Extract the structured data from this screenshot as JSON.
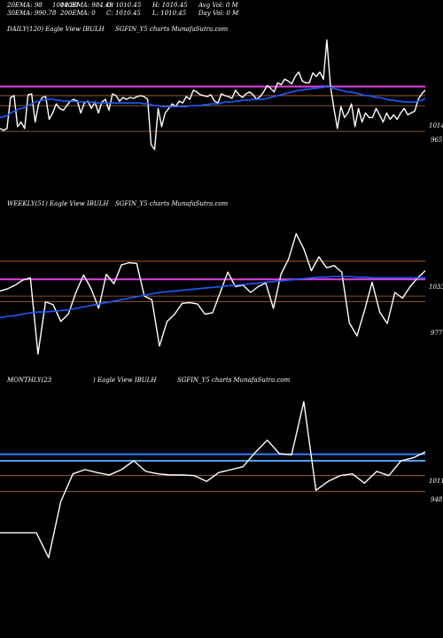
{
  "header": {
    "ema20": "20EMA: 98",
    "ema30": "30EMA: 990.78",
    "ema100": "100EMA: 984.49",
    "ema200": "200EMA: 0",
    "open": "O: 1010.45",
    "high": "H: 1010.45",
    "close": "C: 1010.45",
    "low": "L: 1010.45",
    "avgvol": "Avg Vol: 0  M",
    "dayvol": "Day Vol: 0  M",
    "overlap": "1004.20"
  },
  "panels": [
    {
      "label_left": "DAILY(120) Eagle   View  IBULH",
      "label_right": "SGFIN_Y5 charts MunafaSutra.com",
      "axis_labels": [
        "1014",
        "965"
      ]
    },
    {
      "label_left": "WEEKLY(51) Eagle   View  IBULH",
      "label_right": "SGFIN_Y5 charts MunafaSutra.com",
      "axis_labels": [
        "1033",
        "977"
      ]
    },
    {
      "label_left": "MONTHLY(23",
      "label_mid": ") Eagle   View  IBULH",
      "label_right": "SGFIN_Y5 charts MunafaSutra.com",
      "axis_labels": [
        "1011",
        "948"
      ]
    }
  ],
  "chart_data": [
    {
      "type": "line",
      "title": "DAILY(120)",
      "ylim": [
        900,
        1070
      ],
      "ref_lines": [
        {
          "value": 1014,
          "color": "#e040e0"
        },
        {
          "value": 1004,
          "color": "#b26a2e"
        },
        {
          "value": 993,
          "color": "#b26a2e"
        },
        {
          "value": 965,
          "color": "#b26a2e"
        }
      ],
      "series": [
        {
          "color": "#ffffff",
          "values": [
            968,
            966,
            968,
            1002,
            1004,
            970,
            975,
            968,
            1005,
            1006,
            975,
            995,
            1002,
            1003,
            978,
            985,
            995,
            990,
            988,
            993,
            998,
            1000,
            998,
            985,
            996,
            998,
            990,
            997,
            985,
            997,
            1000,
            988,
            1006,
            1004,
            998,
            1002,
            1000,
            1002,
            1001,
            1003,
            1004,
            1003,
            1000,
            950,
            945,
            990,
            970,
            985,
            990,
            995,
            992,
            998,
            996,
            1003,
            1000,
            1010,
            1008,
            1005,
            1004,
            1003,
            1005,
            998,
            996,
            1006,
            1004,
            1003,
            1001,
            1010,
            1005,
            1002,
            1006,
            1008,
            1005,
            1000,
            1003,
            1008,
            1015,
            1012,
            1008,
            1018,
            1016,
            1022,
            1020,
            1017,
            1025,
            1030,
            1020,
            1018,
            1018,
            1029,
            1025,
            1030,
            1022,
            1065,
            1015,
            990,
            968,
            992,
            980,
            985,
            995,
            970,
            990,
            975,
            985,
            980,
            980,
            990,
            983,
            975,
            985,
            978,
            983,
            978,
            985,
            990,
            983,
            985,
            987,
            1000,
            1006,
            1010
          ]
        },
        {
          "color": "#1e5cff",
          "values": [
            980,
            981,
            982,
            985,
            987,
            989,
            990,
            991,
            993,
            995,
            997,
            998,
            999,
            1000,
            1000,
            1000,
            999,
            999,
            998,
            998,
            998,
            998,
            997,
            997,
            997,
            997,
            997,
            996,
            996,
            996,
            996,
            996,
            996,
            996,
            996,
            996,
            996,
            996,
            996,
            996,
            996,
            995,
            995,
            994,
            993,
            993,
            992,
            992,
            992,
            992,
            992,
            992,
            992,
            992,
            993,
            993,
            993,
            993,
            994,
            994,
            995,
            995,
            995,
            996,
            997,
            997,
            997,
            998,
            998,
            999,
            999,
            999,
            1000,
            1000,
            1000,
            1000,
            1001,
            1002,
            1003,
            1004,
            1005,
            1006,
            1007,
            1008,
            1009,
            1010,
            1010,
            1011,
            1011,
            1012,
            1012,
            1013,
            1013,
            1015,
            1013,
            1012,
            1011,
            1010,
            1009,
            1008,
            1008,
            1007,
            1006,
            1005,
            1004,
            1004,
            1003,
            1002,
            1002,
            1001,
            1000,
            999,
            999,
            998,
            998,
            997,
            997,
            997,
            997,
            998,
            999,
            1001
          ]
        }
      ]
    },
    {
      "type": "line",
      "title": "WEEKLY(51)",
      "ylim": [
        880,
        1100
      ],
      "ref_lines": [
        {
          "value": 1033,
          "color": "#b26a2e"
        },
        {
          "value": 1008,
          "color": "#e040e0"
        },
        {
          "value": 985,
          "color": "#b26a2e"
        },
        {
          "value": 977,
          "color": "#b26a2e"
        }
      ],
      "series": [
        {
          "color": "#ffffff",
          "values": [
            992,
            995,
            1000,
            1007,
            1010,
            905,
            977,
            973,
            950,
            960,
            990,
            1014,
            995,
            968,
            1015,
            1002,
            1028,
            1031,
            1030,
            985,
            980,
            916,
            950,
            960,
            975,
            976,
            974,
            960,
            962,
            990,
            1018,
            998,
            1000,
            990,
            998,
            1003,
            968,
            1015,
            1036,
            1071,
            1050,
            1020,
            1039,
            1024,
            1027,
            1018,
            948,
            930,
            965,
            1004,
            963,
            947,
            990,
            982,
            998,
            1010,
            1020
          ]
        },
        {
          "color": "#1e5cff",
          "values": [
            955,
            957,
            958,
            960,
            962,
            963,
            963,
            964,
            965,
            966,
            968,
            970,
            972,
            974,
            976,
            978,
            980,
            982,
            984,
            986,
            988,
            990,
            991,
            992,
            993,
            994,
            995,
            996,
            997,
            998,
            999,
            1000,
            1001,
            1002,
            1003,
            1004,
            1005,
            1006,
            1007,
            1008,
            1009,
            1010,
            1011,
            1011,
            1012,
            1012,
            1012,
            1011,
            1011,
            1010,
            1010,
            1010,
            1010,
            1010,
            1010,
            1010,
            1010
          ]
        }
      ]
    },
    {
      "type": "line",
      "title": "MONTHLY(23)",
      "ylim": [
        820,
        1120
      ],
      "ref_lines": [
        {
          "value": 1011,
          "color": "#3a7bff"
        },
        {
          "value": 1000,
          "color": "#4aa0ff"
        },
        {
          "value": 975,
          "color": "#b26a2e"
        },
        {
          "value": 948,
          "color": "#b26a2e"
        }
      ],
      "series": [
        {
          "color": "#ffffff",
          "values": [
            878,
            878,
            878,
            878,
            836,
            931,
            978,
            985,
            980,
            976,
            985,
            1000,
            982,
            978,
            976,
            976,
            975,
            965,
            980,
            985,
            990,
            1014,
            1035,
            1012,
            1010,
            1100,
            950,
            965,
            975,
            978,
            962,
            982,
            975,
            1000,
            1005,
            1015
          ]
        }
      ]
    }
  ]
}
